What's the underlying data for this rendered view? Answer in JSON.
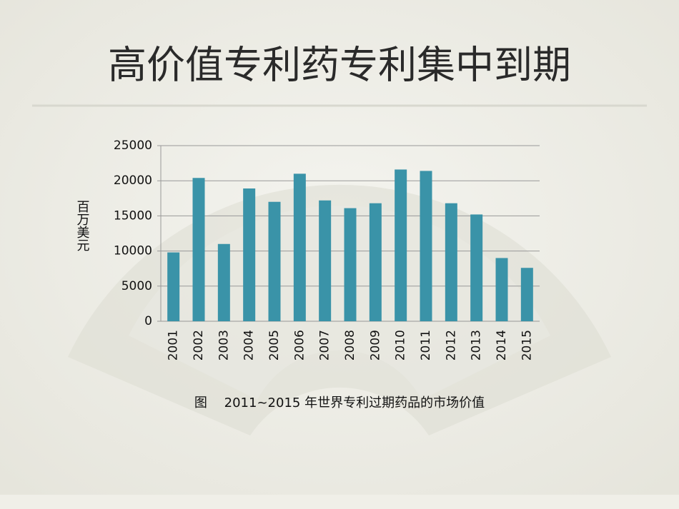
{
  "title": "高价值专利药专利集中到期",
  "chart_data": {
    "type": "bar",
    "y_label": "百万美元",
    "caption": "图　 2011~2015 年世界专利过期药品的市场价值",
    "categories": [
      "2001",
      "2002",
      "2003",
      "2004",
      "2005",
      "2006",
      "2007",
      "2008",
      "2009",
      "2010",
      "2011",
      "2012",
      "2013",
      "2014",
      "2015"
    ],
    "values": [
      9800,
      20400,
      11000,
      18900,
      17000,
      21000,
      17200,
      16100,
      16800,
      21600,
      21400,
      16800,
      15200,
      9000,
      7600
    ],
    "color": "#3a93a8",
    "ylim": [
      0,
      25000
    ],
    "yticks": [
      0,
      5000,
      10000,
      15000,
      20000,
      25000
    ],
    "grid": true
  }
}
